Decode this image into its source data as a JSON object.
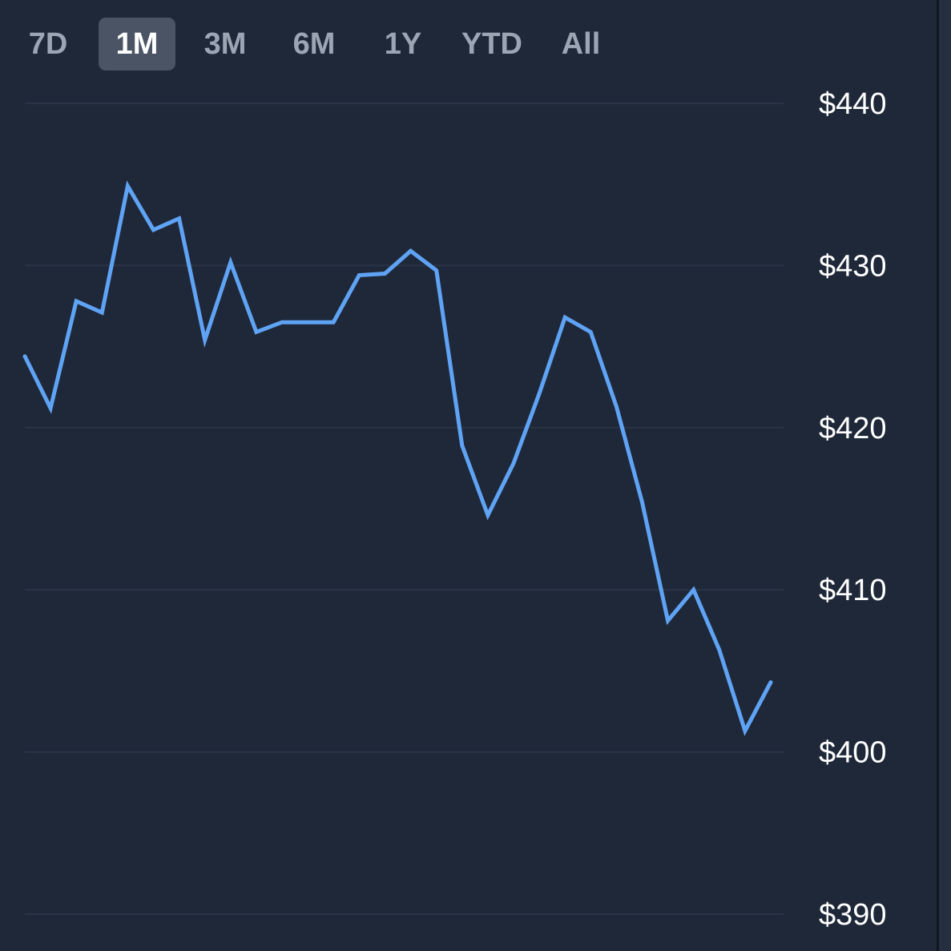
{
  "range_tabs": [
    {
      "label": "7D",
      "active": false
    },
    {
      "label": "1M",
      "active": true
    },
    {
      "label": "3M",
      "active": false
    },
    {
      "label": "6M",
      "active": false
    },
    {
      "label": "1Y",
      "active": false
    },
    {
      "label": "YTD",
      "active": false
    },
    {
      "label": "All",
      "active": false
    }
  ],
  "colors": {
    "background": "#1f2839",
    "line": "#5fa3f5",
    "gridline": "#2b3446",
    "active_tab_bg": "#4a5465",
    "inactive_tab_text": "#9ca5b3",
    "active_tab_text": "#ffffff",
    "axis_label": "#ffffff"
  },
  "chart_data": {
    "type": "line",
    "title": "",
    "xlabel": "",
    "ylabel": "",
    "y_axis_position": "right",
    "grid": true,
    "ylim": [
      390,
      440
    ],
    "yticks": [
      440,
      430,
      420,
      410,
      400,
      390
    ],
    "ytick_labels": [
      "$440",
      "$430",
      "$420",
      "$410",
      "$400",
      "$390"
    ],
    "series": [
      {
        "values": [
          424.4,
          421.2,
          427.8,
          427.1,
          434.9,
          432.2,
          432.9,
          425.4,
          430.2,
          425.9,
          426.5,
          426.5,
          426.5,
          429.4,
          429.5,
          430.9,
          429.7,
          418.9,
          414.6,
          417.8,
          422.1,
          426.8,
          425.9,
          421.3,
          415.4,
          408.1,
          410.0,
          406.3,
          401.3,
          404.3
        ]
      }
    ]
  }
}
